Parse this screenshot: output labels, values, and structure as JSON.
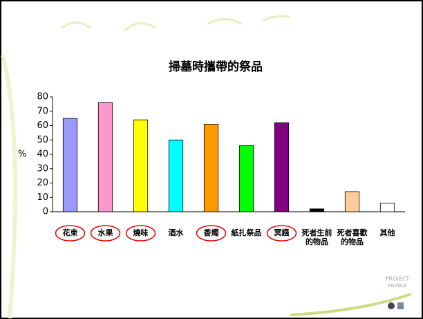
{
  "chart_data": {
    "type": "bar",
    "title": "掃墓時攜帶的祭品",
    "y_label": "%",
    "categories": [
      "花束",
      "水果",
      "燒味",
      "酒水",
      "香燭",
      "紙扎祭品",
      "冥鏹",
      "死者生前\n的物品",
      "死者喜歡\n的物品",
      "其他"
    ],
    "values": [
      65,
      76,
      64,
      50,
      61,
      46,
      62,
      2,
      14,
      6
    ],
    "colors": [
      "#9999ff",
      "#ff99cc",
      "#ffff00",
      "#00ffff",
      "#ff9900",
      "#00ff00",
      "#800080",
      "#000000",
      "#ffcc99",
      "#ffffff"
    ],
    "circled": [
      true,
      true,
      true,
      false,
      true,
      false,
      true,
      false,
      false,
      false
    ],
    "ylim": [
      0,
      80
    ],
    "yticks": [
      0,
      10,
      20,
      30,
      40,
      50,
      60,
      70,
      80
    ],
    "grid": false
  },
  "logo": [
    "PROJECT",
    "ENABLE"
  ]
}
